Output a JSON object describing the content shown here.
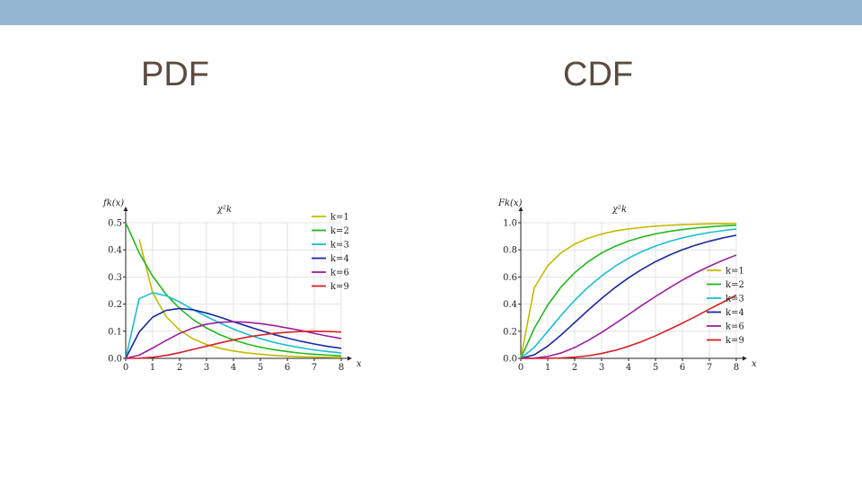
{
  "slide": {
    "left_heading": "PDF",
    "right_heading": "CDF"
  },
  "colors": {
    "top_bar": "#93b6d2",
    "heading": "#5b4a3f"
  },
  "chart_data": [
    {
      "type": "line",
      "title": "χ²k",
      "ylabel": "fk(x)",
      "xlabel": "x",
      "xlim": [
        0,
        8
      ],
      "ylim": [
        0,
        0.5
      ],
      "xticks": [
        0,
        1,
        2,
        3,
        4,
        5,
        6,
        7,
        8
      ],
      "yticks": [
        0.0,
        0.1,
        0.2,
        0.3,
        0.4,
        0.5
      ],
      "ytick_labels": [
        "0.0",
        "0.1",
        "0.2",
        "0.3",
        "0.4",
        "0.5"
      ],
      "legend_position": "top-right",
      "x": [
        0,
        0.5,
        1,
        1.5,
        2,
        2.5,
        3,
        3.5,
        4,
        4.5,
        5,
        5.5,
        6,
        6.5,
        7,
        7.5,
        8
      ],
      "series": [
        {
          "name": "k=1",
          "color": "#c8b900",
          "values": [
            null,
            0.439,
            0.242,
            0.154,
            0.104,
            0.072,
            0.051,
            0.037,
            0.027,
            0.02,
            0.015,
            0.011,
            0.008,
            0.006,
            0.005,
            0.004,
            0.003
          ]
        },
        {
          "name": "k=2",
          "color": "#22b81e",
          "values": [
            0.5,
            0.389,
            0.303,
            0.236,
            0.184,
            0.143,
            0.112,
            0.087,
            0.068,
            0.053,
            0.041,
            0.032,
            0.025,
            0.019,
            0.015,
            0.012,
            0.009
          ]
        },
        {
          "name": "k=3",
          "color": "#19bfd2",
          "values": [
            0,
            0.22,
            0.242,
            0.231,
            0.208,
            0.18,
            0.154,
            0.13,
            0.108,
            0.089,
            0.073,
            0.059,
            0.048,
            0.039,
            0.031,
            0.025,
            0.02
          ]
        },
        {
          "name": "k=4",
          "color": "#1a2ba0",
          "values": [
            0,
            0.097,
            0.152,
            0.177,
            0.184,
            0.179,
            0.167,
            0.152,
            0.135,
            0.119,
            0.103,
            0.088,
            0.075,
            0.063,
            0.053,
            0.044,
            0.037
          ]
        },
        {
          "name": "k=6",
          "color": "#9b1fa0",
          "values": [
            0,
            0.012,
            0.038,
            0.066,
            0.092,
            0.112,
            0.126,
            0.133,
            0.135,
            0.133,
            0.128,
            0.121,
            0.112,
            0.103,
            0.092,
            0.082,
            0.073
          ]
        },
        {
          "name": "k=9",
          "color": "#d71f26",
          "values": [
            0,
            0.0006,
            0.004,
            0.011,
            0.021,
            0.033,
            0.045,
            0.057,
            0.068,
            0.078,
            0.086,
            0.092,
            0.096,
            0.099,
            0.1,
            0.099,
            0.097
          ]
        }
      ]
    },
    {
      "type": "line",
      "title": "χ²k",
      "ylabel": "Fk(x)",
      "xlabel": "x",
      "xlim": [
        0,
        8
      ],
      "ylim": [
        0,
        1
      ],
      "xticks": [
        0,
        1,
        2,
        3,
        4,
        5,
        6,
        7,
        8
      ],
      "yticks": [
        0.0,
        0.2,
        0.4,
        0.6,
        0.8,
        1.0
      ],
      "ytick_labels": [
        "0.0",
        "0.2",
        "0.4",
        "0.6",
        "0.8",
        "1.0"
      ],
      "legend_position": "center-right",
      "x": [
        0,
        0.5,
        1,
        1.5,
        2,
        2.5,
        3,
        3.5,
        4,
        4.5,
        5,
        5.5,
        6,
        6.5,
        7,
        7.5,
        8
      ],
      "series": [
        {
          "name": "k=1",
          "color": "#c8b900",
          "values": [
            0,
            0.52,
            0.683,
            0.779,
            0.843,
            0.886,
            0.917,
            0.939,
            0.954,
            0.966,
            0.975,
            0.981,
            0.986,
            0.989,
            0.992,
            0.994,
            0.995
          ]
        },
        {
          "name": "k=2",
          "color": "#22b81e",
          "values": [
            0,
            0.221,
            0.393,
            0.528,
            0.632,
            0.713,
            0.777,
            0.826,
            0.865,
            0.895,
            0.918,
            0.936,
            0.95,
            0.961,
            0.97,
            0.977,
            0.982
          ]
        },
        {
          "name": "k=3",
          "color": "#19bfd2",
          "values": [
            0,
            0.081,
            0.199,
            0.318,
            0.428,
            0.525,
            0.608,
            0.679,
            0.739,
            0.788,
            0.828,
            0.862,
            0.888,
            0.91,
            0.928,
            0.942,
            0.954
          ]
        },
        {
          "name": "k=4",
          "color": "#1a2ba0",
          "values": [
            0,
            0.026,
            0.09,
            0.173,
            0.264,
            0.355,
            0.442,
            0.522,
            0.594,
            0.657,
            0.713,
            0.76,
            0.801,
            0.835,
            0.864,
            0.888,
            0.908
          ]
        },
        {
          "name": "k=6",
          "color": "#9b1fa0",
          "values": [
            0,
            0.002,
            0.014,
            0.04,
            0.08,
            0.132,
            0.191,
            0.256,
            0.323,
            0.391,
            0.456,
            0.518,
            0.577,
            0.631,
            0.679,
            0.723,
            0.762
          ]
        },
        {
          "name": "k=9",
          "color": "#d71f26",
          "values": [
            0,
            4e-05,
            0.0006,
            0.003,
            0.009,
            0.019,
            0.036,
            0.059,
            0.089,
            0.125,
            0.166,
            0.212,
            0.26,
            0.31,
            0.363,
            0.414,
            0.466
          ]
        }
      ]
    }
  ]
}
